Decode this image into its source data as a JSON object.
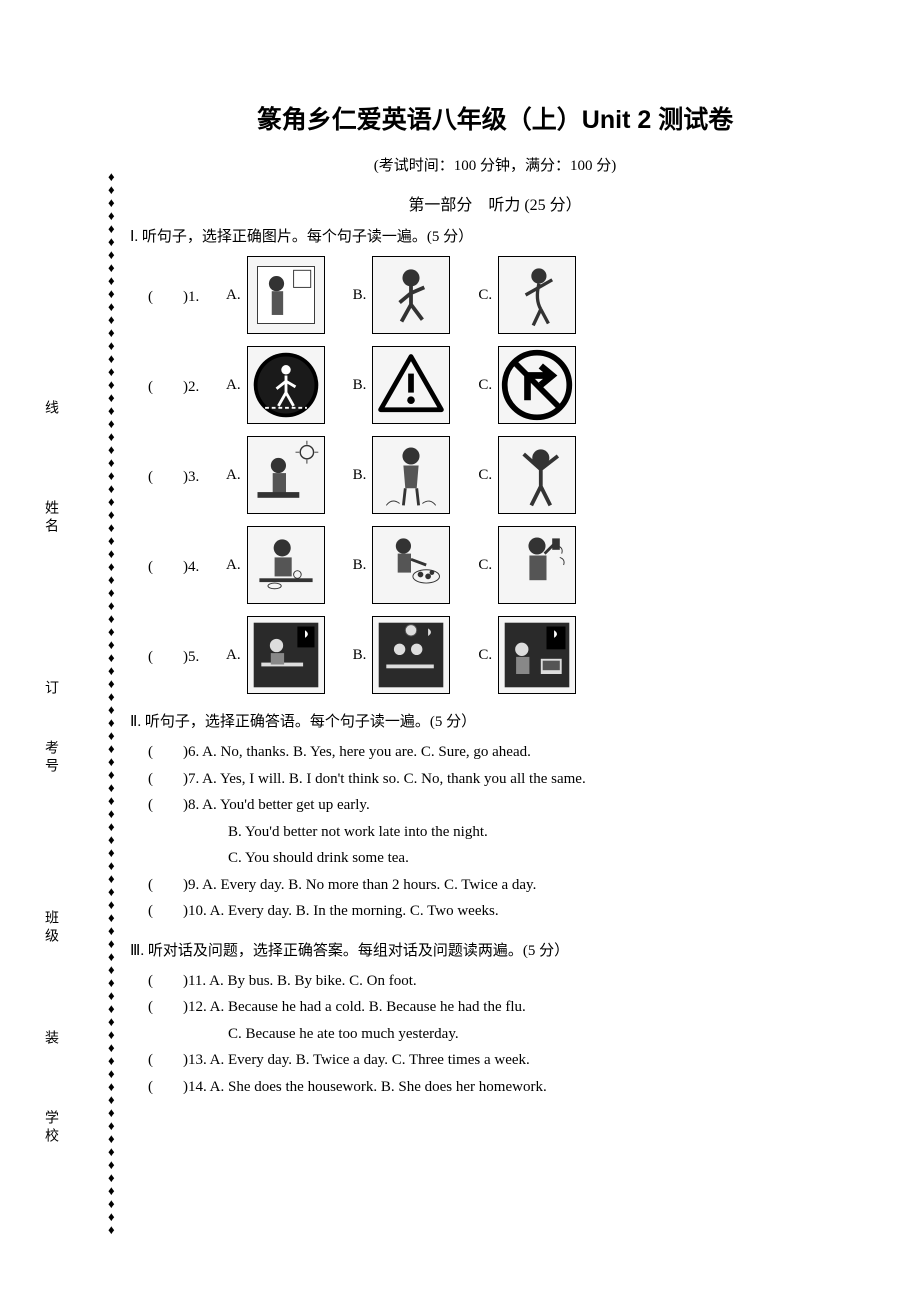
{
  "binding": {
    "labels": [
      "学校",
      "装",
      "班级",
      "考号",
      "订",
      "姓名",
      "线"
    ],
    "diamond_char": "♦",
    "diamond_count": 82
  },
  "title": "篆角乡仁爱英语八年级（上）Unit 2 测试卷",
  "exam_info": "(考试时间：100 分钟，满分：100 分)",
  "part1_title": "第一部分　听力 (25 分）",
  "section1": {
    "title": "Ⅰ. 听句子，选择正确图片。每个句子读一遍。(5 分）",
    "questions": [
      {
        "num": "1",
        "opts": [
          "A",
          "B",
          "C"
        ],
        "icons": [
          "girl-brushing",
          "girl-running",
          "girl-dancing"
        ]
      },
      {
        "num": "2",
        "opts": [
          "A",
          "B",
          "C"
        ],
        "icons": [
          "sign-crosswalk",
          "sign-warning",
          "sign-noright"
        ]
      },
      {
        "num": "3",
        "opts": [
          "A",
          "B",
          "C"
        ],
        "icons": [
          "girl-sun",
          "girl-standing",
          "boy-stretching"
        ]
      },
      {
        "num": "4",
        "opts": [
          "A",
          "B",
          "C"
        ],
        "icons": [
          "boy-eating",
          "boy-washing",
          "boy-drinking"
        ]
      },
      {
        "num": "5",
        "opts": [
          "A",
          "B",
          "C"
        ],
        "icons": [
          "boy-night-desk",
          "two-night-desk",
          "boy-night-tv"
        ]
      }
    ]
  },
  "section2": {
    "title": "Ⅱ. 听句子，选择正确答语。每个句子读一遍。(5 分）",
    "questions": [
      {
        "num": "6",
        "text": "A. No, thanks.   B. Yes, here you are.  C. Sure, go ahead."
      },
      {
        "num": "7",
        "text": "A. Yes, I will.    B. I don't think so.   C. No, thank you all the same."
      },
      {
        "num": "8",
        "text": "A. You'd better get up early.",
        "subs": [
          "B. You'd better not work late into the night.",
          "C. You should drink some tea."
        ]
      },
      {
        "num": "9",
        "text": "A. Every day.    B. No more than 2 hours.    C. Twice a day."
      },
      {
        "num": "10",
        "text": "A. Every day.   B. In the morning.    C. Two weeks."
      }
    ]
  },
  "section3": {
    "title": "Ⅲ.  听对话及问题，选择正确答案。每组对话及问题读两遍。(5 分）",
    "questions": [
      {
        "num": "11",
        "text": "A. By bus.        B. By bike.              C. On foot."
      },
      {
        "num": "12",
        "text": "A. Because he had a cold.               B. Because he had the flu.",
        "subs": [
          "C. Because he ate too much yesterday."
        ]
      },
      {
        "num": "13",
        "text": "A. Every day.             B. Twice a day.         C. Three times a week."
      },
      {
        "num": "14",
        "text": "A. She does the housework.         B. She does her homework."
      }
    ]
  },
  "svg_placeholders": {
    "girl-brushing": "<rect x='10' y='10' width='60' height='60' fill='#fff' stroke='#333'/><circle cx='30' cy='28' r='8' fill='#333'/><rect x='25' y='36' width='12' height='25' fill='#555'/><rect x='48' y='14' width='18' height='18' fill='none' stroke='#333'/>",
    "girl-running": "<circle cx='40' cy='22' r='9' fill='#333'/><path d='M40 30 L40 50 M40 38 L28 48 M40 38 L54 32 M40 50 L30 68 M40 50 L52 66' stroke='#333' stroke-width='4' fill='none'/>",
    "girl-dancing": "<circle cx='42' cy='20' r='8' fill='#333'/><path d='M42 28 Q38 45 44 55 M42 32 L28 40 M42 32 L56 24 M44 55 L36 72 M44 55 L52 70' stroke='#333' stroke-width='3.5' fill='none'/>",
    "sign-crosswalk": "<circle cx='40' cy='40' r='34' fill='#000'/><circle cx='40' cy='40' r='30' fill='#1a1a1a'/><circle cx='40' cy='24' r='5' fill='#fff'/><path d='M40 30 L40 48 M40 36 L30 44 M40 36 L50 42 M40 48 L32 62 M40 48 L48 62' stroke='#fff' stroke-width='3'/><path d='M18 64 L62 64' stroke='#fff' stroke-width='2' stroke-dasharray='4,3'/>",
    "sign-warning": "<path d='M40 10 L72 66 L8 66 Z' fill='none' stroke='#000' stroke-width='5' stroke-linejoin='round'/><rect x='37' y='28' width='6' height='20' fill='#000'/><circle cx='40' cy='56' r='4' fill='#000'/>",
    "sign-noright": "<circle cx='40' cy='40' r='34' fill='none' stroke='#000' stroke-width='6'/><path d='M30 56 L30 30 L52 30 M44 20 L56 30 L44 40' fill='none' stroke='#000' stroke-width='7'/><path d='M16 16 L64 64' stroke='#000' stroke-width='6'/>",
    "girl-sun": "<circle cx='62' cy='16' r='7' fill='none' stroke='#333' stroke-width='1.5'/><path d='M62 4 L62 8 M62 24 L62 28 M50 16 L54 16 M70 16 L74 16' stroke='#333'/><circle cx='32' cy='30' r='8' fill='#333'/><rect x='26' y='38' width='14' height='22' fill='#555'/><rect x='10' y='58' width='44' height='6' fill='#333'/>",
    "girl-standing": "<circle cx='40' cy='20' r='9' fill='#333'/><path d='M32 30 L48 30 L46 54 L34 54 Z' fill='#555'/><path d='M34 54 L32 72 M46 54 L48 72' stroke='#333' stroke-width='3'/><path d='M14 72 Q20 64 28 70 M52 70 Q60 64 66 72' fill='none' stroke='#333'/>",
    "boy-stretching": "<circle cx='44' cy='22' r='9' fill='#333'/><path d='M44 30 L44 52 M44 34 L26 18 M44 34 L62 20 M44 52 L34 72 M44 52 L54 72' stroke='#333' stroke-width='4'/>",
    "boy-eating": "<circle cx='36' cy='22' r='9' fill='#333'/><rect x='28' y='32' width='18' height='20' fill='#555'/><rect x='12' y='54' width='56' height='4' fill='#333'/><circle cx='52' cy='50' r='4' fill='none' stroke='#333'/><ellipse cx='28' cy='62' rx='7' ry='3' fill='none' stroke='#333'/>",
    "boy-washing": "<circle cx='32' cy='20' r='8' fill='#333'/><rect x='26' y='28' width='14' height='20' fill='#555'/><path d='M40 34 L56 40' stroke='#333' stroke-width='3'/><ellipse cx='56' cy='52' rx='14' ry='7' fill='none' stroke='#333'/><circle cx='50' cy='50' r='3' fill='#333'/><circle cx='58' cy='52' r='3' fill='#333'/><circle cx='62' cy='48' r='2.5' fill='#333'/>",
    "boy-drinking": "<circle cx='40' cy='20' r='9' fill='#333'/><rect x='32' y='30' width='18' height='26' fill='#555'/><path d='M48 28 L58 18' stroke='#333' stroke-width='3'/><rect x='56' y='12' width='8' height='12' fill='#333'/><path d='M62 20 Q68 22 66 28 M64 32 Q70 34 68 40' fill='none' stroke='#333'/>",
    "boy-night-desk": "<rect x='6' y='6' width='68' height='68' fill='#2a2a2a'/><rect x='52' y='10' width='18' height='22' fill='#000'/><path d='M60 14 Q66 18 60 22' fill='#fff'/><circle cx='30' cy='30' r='7' fill='#ddd'/><rect x='14' y='48' width='44' height='4' fill='#ddd'/><rect x='24' y='38' width='14' height='12' fill='#888'/>",
    "two-night-desk": "<rect x='6' y='6' width='68' height='68' fill='#2a2a2a'/><circle cx='40' cy='14' r='6' fill='#ddd' stroke='#555'/><path d='M58 12 Q64 16 58 20' fill='#ddd'/><circle cx='28' cy='34' r='6' fill='#ddd'/><circle cx='46' cy='34' r='6' fill='#ddd'/><rect x='14' y='50' width='50' height='4' fill='#ddd'/>",
    "boy-night-tv": "<rect x='6' y='6' width='68' height='68' fill='#2a2a2a'/><rect x='50' y='10' width='20' height='24' fill='#000'/><path d='M58 14 Q64 18 58 22' fill='#fff'/><circle cx='24' cy='34' r='7' fill='#ddd'/><rect x='18' y='42' width='14' height='18' fill='#888'/><rect x='44' y='44' width='22' height='16' fill='#ddd'/><rect x='46' y='46' width='18' height='10' fill='#555'/>"
  }
}
